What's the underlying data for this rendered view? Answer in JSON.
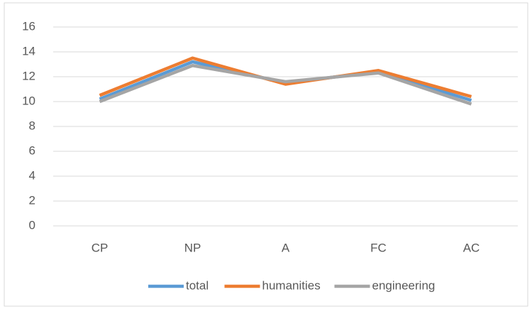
{
  "chart_data": {
    "type": "line",
    "categories": [
      "CP",
      "NP",
      "A",
      "FC",
      "AC"
    ],
    "series": [
      {
        "name": "total",
        "color": "#5b9bd5",
        "values": [
          10.2,
          13.2,
          11.5,
          12.4,
          10.1
        ]
      },
      {
        "name": "humanities",
        "color": "#ed7d31",
        "values": [
          10.5,
          13.5,
          11.4,
          12.5,
          10.4
        ]
      },
      {
        "name": "engineering",
        "color": "#a5a5a5",
        "values": [
          10.0,
          12.9,
          11.6,
          12.3,
          9.8
        ]
      }
    ],
    "ylim": [
      0,
      16
    ],
    "yticks": [
      0,
      2,
      4,
      6,
      8,
      10,
      12,
      14,
      16
    ],
    "grid": true,
    "legend": "bottom"
  }
}
